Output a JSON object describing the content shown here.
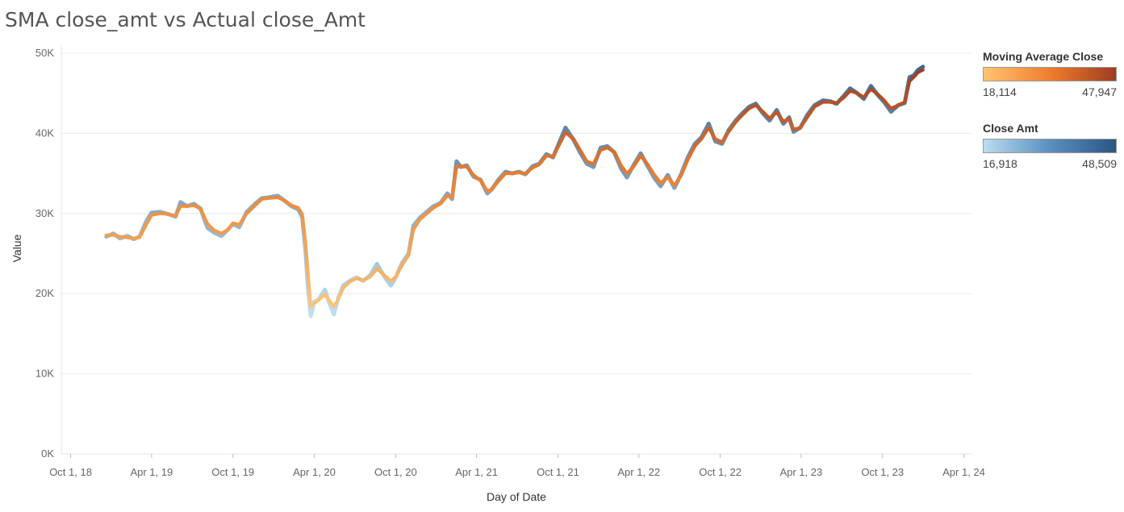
{
  "chart_data": {
    "type": "line",
    "title": "SMA close_amt vs Actual close_Amt",
    "xlabel": "Day of Date",
    "ylabel": "Value",
    "ylim": [
      0,
      50000
    ],
    "xlim": [
      "2018-09-10",
      "2024-04-20"
    ],
    "y_ticks": [
      0,
      10000,
      20000,
      30000,
      40000,
      50000
    ],
    "y_tick_labels": [
      "0K",
      "10K",
      "20K",
      "30K",
      "40K",
      "50K"
    ],
    "x_ticks": [
      "2018-10-01",
      "2019-04-01",
      "2019-10-01",
      "2020-04-01",
      "2020-10-01",
      "2021-04-01",
      "2021-10-01",
      "2022-04-01",
      "2022-10-01",
      "2023-04-01",
      "2023-10-01",
      "2024-04-01"
    ],
    "x_tick_labels": [
      "Oct 1, 18",
      "Apr 1, 19",
      "Oct 1, 19",
      "Apr 1, 20",
      "Oct 1, 20",
      "Apr 1, 21",
      "Oct 1, 21",
      "Apr 1, 22",
      "Oct 1, 22",
      "Apr 1, 23",
      "Oct 1, 23",
      "Apr 1, 24"
    ],
    "grid": true,
    "legend_position": "right",
    "series": [
      {
        "name": "Close Amt",
        "color_range": [
          "#b9dcef",
          "#2a5783"
        ],
        "value_range": [
          16918,
          48509
        ],
        "points": [
          [
            "2018-12-20",
            27100
          ],
          [
            "2019-01-05",
            27500
          ],
          [
            "2019-01-20",
            26900
          ],
          [
            "2019-02-05",
            27200
          ],
          [
            "2019-02-20",
            26800
          ],
          [
            "2019-03-05",
            27100
          ],
          [
            "2019-03-20",
            29000
          ],
          [
            "2019-04-01",
            30100
          ],
          [
            "2019-04-20",
            30200
          ],
          [
            "2019-05-10",
            29900
          ],
          [
            "2019-05-25",
            29600
          ],
          [
            "2019-06-05",
            31400
          ],
          [
            "2019-06-20",
            30900
          ],
          [
            "2019-07-05",
            31200
          ],
          [
            "2019-07-20",
            30600
          ],
          [
            "2019-08-05",
            28200
          ],
          [
            "2019-08-20",
            27600
          ],
          [
            "2019-09-05",
            27200
          ],
          [
            "2019-09-20",
            28000
          ],
          [
            "2019-10-01",
            28700
          ],
          [
            "2019-10-15",
            28300
          ],
          [
            "2019-11-01",
            30200
          ],
          [
            "2019-11-20",
            31200
          ],
          [
            "2019-12-05",
            31900
          ],
          [
            "2019-12-20",
            32000
          ],
          [
            "2020-01-10",
            32200
          ],
          [
            "2020-01-25",
            31600
          ],
          [
            "2020-02-10",
            30900
          ],
          [
            "2020-02-25",
            30500
          ],
          [
            "2020-03-05",
            29500
          ],
          [
            "2020-03-12",
            25500
          ],
          [
            "2020-03-18",
            20500
          ],
          [
            "2020-03-24",
            17200
          ],
          [
            "2020-04-01",
            19000
          ],
          [
            "2020-04-10",
            19200
          ],
          [
            "2020-04-25",
            20500
          ],
          [
            "2020-05-05",
            18800
          ],
          [
            "2020-05-15",
            17400
          ],
          [
            "2020-05-25",
            19500
          ],
          [
            "2020-06-05",
            21000
          ],
          [
            "2020-06-20",
            21600
          ],
          [
            "2020-07-05",
            22000
          ],
          [
            "2020-07-20",
            21600
          ],
          [
            "2020-08-05",
            22300
          ],
          [
            "2020-08-20",
            23700
          ],
          [
            "2020-09-05",
            22200
          ],
          [
            "2020-09-20",
            21000
          ],
          [
            "2020-10-01",
            22000
          ],
          [
            "2020-10-15",
            23800
          ],
          [
            "2020-10-30",
            25000
          ],
          [
            "2020-11-10",
            28500
          ],
          [
            "2020-11-25",
            29500
          ],
          [
            "2020-12-10",
            30200
          ],
          [
            "2020-12-25",
            30900
          ],
          [
            "2021-01-10",
            31300
          ],
          [
            "2021-01-25",
            32500
          ],
          [
            "2021-02-05",
            31800
          ],
          [
            "2021-02-15",
            36500
          ],
          [
            "2021-02-25",
            35800
          ],
          [
            "2021-03-10",
            36000
          ],
          [
            "2021-03-25",
            34600
          ],
          [
            "2021-04-10",
            34200
          ],
          [
            "2021-04-25",
            32500
          ],
          [
            "2021-05-05",
            33000
          ],
          [
            "2021-05-20",
            34200
          ],
          [
            "2021-06-05",
            35200
          ],
          [
            "2021-06-20",
            35000
          ],
          [
            "2021-07-05",
            35200
          ],
          [
            "2021-07-20",
            34900
          ],
          [
            "2021-08-05",
            35900
          ],
          [
            "2021-08-20",
            36200
          ],
          [
            "2021-09-05",
            37400
          ],
          [
            "2021-09-20",
            37000
          ],
          [
            "2021-10-05",
            39000
          ],
          [
            "2021-10-18",
            40700
          ],
          [
            "2021-11-05",
            39200
          ],
          [
            "2021-11-20",
            37600
          ],
          [
            "2021-12-05",
            36200
          ],
          [
            "2021-12-20",
            35800
          ],
          [
            "2022-01-05",
            38200
          ],
          [
            "2022-01-20",
            38400
          ],
          [
            "2022-02-05",
            37600
          ],
          [
            "2022-02-20",
            35600
          ],
          [
            "2022-03-05",
            34500
          ],
          [
            "2022-03-20",
            36000
          ],
          [
            "2022-04-05",
            37500
          ],
          [
            "2022-04-20",
            36000
          ],
          [
            "2022-05-05",
            34500
          ],
          [
            "2022-05-20",
            33400
          ],
          [
            "2022-06-05",
            34800
          ],
          [
            "2022-06-20",
            33200
          ],
          [
            "2022-07-05",
            34900
          ],
          [
            "2022-07-20",
            37000
          ],
          [
            "2022-08-05",
            38700
          ],
          [
            "2022-08-20",
            39500
          ],
          [
            "2022-09-05",
            41200
          ],
          [
            "2022-09-20",
            39000
          ],
          [
            "2022-10-05",
            38700
          ],
          [
            "2022-10-20",
            40400
          ],
          [
            "2022-11-05",
            41600
          ],
          [
            "2022-11-20",
            42500
          ],
          [
            "2022-12-05",
            43300
          ],
          [
            "2022-12-20",
            43700
          ],
          [
            "2023-01-05",
            42500
          ],
          [
            "2023-01-20",
            41600
          ],
          [
            "2023-02-05",
            42900
          ],
          [
            "2023-02-20",
            41200
          ],
          [
            "2023-03-05",
            42000
          ],
          [
            "2023-03-15",
            40200
          ],
          [
            "2023-03-30",
            40700
          ],
          [
            "2023-04-15",
            42300
          ],
          [
            "2023-05-01",
            43500
          ],
          [
            "2023-05-20",
            44100
          ],
          [
            "2023-06-05",
            44000
          ],
          [
            "2023-06-20",
            43700
          ],
          [
            "2023-07-05",
            44600
          ],
          [
            "2023-07-20",
            45600
          ],
          [
            "2023-08-05",
            45000
          ],
          [
            "2023-08-20",
            44300
          ],
          [
            "2023-09-05",
            45900
          ],
          [
            "2023-09-20",
            44800
          ],
          [
            "2023-10-05",
            43900
          ],
          [
            "2023-10-20",
            42700
          ],
          [
            "2023-11-05",
            43500
          ],
          [
            "2023-11-20",
            43800
          ],
          [
            "2023-12-01",
            47000
          ],
          [
            "2023-12-10",
            47200
          ],
          [
            "2023-12-20",
            47900
          ],
          [
            "2023-12-31",
            48300
          ]
        ]
      },
      {
        "name": "Moving Average Close",
        "color_range": [
          "#ffc472",
          "#9e3d22"
        ],
        "value_range": [
          18114,
          47947
        ],
        "points": [
          [
            "2018-12-20",
            27300
          ],
          [
            "2019-01-05",
            27300
          ],
          [
            "2019-01-20",
            27100
          ],
          [
            "2019-02-05",
            27000
          ],
          [
            "2019-02-20",
            26900
          ],
          [
            "2019-03-05",
            27000
          ],
          [
            "2019-03-20",
            28600
          ],
          [
            "2019-04-01",
            29800
          ],
          [
            "2019-04-20",
            30000
          ],
          [
            "2019-05-10",
            29900
          ],
          [
            "2019-05-25",
            29700
          ],
          [
            "2019-06-05",
            30900
          ],
          [
            "2019-06-20",
            30900
          ],
          [
            "2019-07-05",
            31000
          ],
          [
            "2019-07-20",
            30600
          ],
          [
            "2019-08-05",
            28700
          ],
          [
            "2019-08-20",
            27900
          ],
          [
            "2019-09-05",
            27500
          ],
          [
            "2019-09-20",
            28000
          ],
          [
            "2019-10-01",
            28800
          ],
          [
            "2019-10-15",
            28600
          ],
          [
            "2019-11-01",
            30000
          ],
          [
            "2019-11-20",
            31000
          ],
          [
            "2019-12-05",
            31800
          ],
          [
            "2019-12-20",
            31900
          ],
          [
            "2020-01-10",
            32000
          ],
          [
            "2020-01-25",
            31600
          ],
          [
            "2020-02-10",
            31000
          ],
          [
            "2020-02-25",
            30700
          ],
          [
            "2020-03-05",
            29900
          ],
          [
            "2020-03-12",
            26500
          ],
          [
            "2020-03-18",
            22500
          ],
          [
            "2020-03-24",
            18400
          ],
          [
            "2020-04-01",
            18800
          ],
          [
            "2020-04-10",
            19200
          ],
          [
            "2020-04-25",
            19900
          ],
          [
            "2020-05-05",
            19100
          ],
          [
            "2020-05-15",
            18400
          ],
          [
            "2020-05-25",
            19300
          ],
          [
            "2020-06-05",
            20700
          ],
          [
            "2020-06-20",
            21500
          ],
          [
            "2020-07-05",
            21900
          ],
          [
            "2020-07-20",
            21700
          ],
          [
            "2020-08-05",
            22100
          ],
          [
            "2020-08-20",
            23100
          ],
          [
            "2020-09-05",
            22300
          ],
          [
            "2020-09-20",
            21600
          ],
          [
            "2020-10-01",
            22100
          ],
          [
            "2020-10-15",
            23500
          ],
          [
            "2020-10-30",
            24800
          ],
          [
            "2020-11-10",
            28000
          ],
          [
            "2020-11-25",
            29300
          ],
          [
            "2020-12-10",
            30000
          ],
          [
            "2020-12-25",
            30700
          ],
          [
            "2021-01-10",
            31200
          ],
          [
            "2021-01-25",
            32200
          ],
          [
            "2021-02-05",
            32000
          ],
          [
            "2021-02-15",
            35800
          ],
          [
            "2021-02-25",
            35900
          ],
          [
            "2021-03-10",
            35800
          ],
          [
            "2021-03-25",
            34800
          ],
          [
            "2021-04-10",
            34100
          ],
          [
            "2021-04-25",
            32800
          ],
          [
            "2021-05-05",
            33000
          ],
          [
            "2021-05-20",
            34000
          ],
          [
            "2021-06-05",
            35000
          ],
          [
            "2021-06-20",
            35000
          ],
          [
            "2021-07-05",
            35100
          ],
          [
            "2021-07-20",
            35000
          ],
          [
            "2021-08-05",
            35700
          ],
          [
            "2021-08-20",
            36100
          ],
          [
            "2021-09-05",
            37200
          ],
          [
            "2021-09-20",
            37100
          ],
          [
            "2021-10-05",
            38700
          ],
          [
            "2021-10-18",
            40100
          ],
          [
            "2021-11-05",
            39300
          ],
          [
            "2021-11-20",
            37900
          ],
          [
            "2021-12-05",
            36500
          ],
          [
            "2021-12-20",
            36200
          ],
          [
            "2022-01-05",
            37900
          ],
          [
            "2022-01-20",
            38200
          ],
          [
            "2022-02-05",
            37700
          ],
          [
            "2022-02-20",
            36000
          ],
          [
            "2022-03-05",
            35000
          ],
          [
            "2022-03-20",
            35800
          ],
          [
            "2022-04-05",
            37200
          ],
          [
            "2022-04-20",
            36200
          ],
          [
            "2022-05-05",
            34900
          ],
          [
            "2022-05-20",
            33800
          ],
          [
            "2022-06-05",
            34500
          ],
          [
            "2022-06-20",
            33500
          ],
          [
            "2022-07-05",
            34700
          ],
          [
            "2022-07-20",
            36700
          ],
          [
            "2022-08-05",
            38400
          ],
          [
            "2022-08-20",
            39300
          ],
          [
            "2022-09-05",
            40700
          ],
          [
            "2022-09-20",
            39300
          ],
          [
            "2022-10-05",
            38900
          ],
          [
            "2022-10-20",
            40200
          ],
          [
            "2022-11-05",
            41400
          ],
          [
            "2022-11-20",
            42300
          ],
          [
            "2022-12-05",
            43100
          ],
          [
            "2022-12-20",
            43500
          ],
          [
            "2023-01-05",
            42700
          ],
          [
            "2023-01-20",
            41900
          ],
          [
            "2023-02-05",
            42600
          ],
          [
            "2023-02-20",
            41500
          ],
          [
            "2023-03-05",
            41800
          ],
          [
            "2023-03-15",
            40500
          ],
          [
            "2023-03-30",
            40700
          ],
          [
            "2023-04-15",
            42000
          ],
          [
            "2023-05-01",
            43300
          ],
          [
            "2023-05-20",
            43900
          ],
          [
            "2023-06-05",
            43900
          ],
          [
            "2023-06-20",
            43800
          ],
          [
            "2023-07-05",
            44400
          ],
          [
            "2023-07-20",
            45300
          ],
          [
            "2023-08-05",
            45000
          ],
          [
            "2023-08-20",
            44500
          ],
          [
            "2023-09-05",
            45500
          ],
          [
            "2023-09-20",
            44900
          ],
          [
            "2023-10-05",
            44100
          ],
          [
            "2023-10-20",
            43100
          ],
          [
            "2023-11-05",
            43500
          ],
          [
            "2023-11-20",
            43900
          ],
          [
            "2023-12-01",
            46500
          ],
          [
            "2023-12-10",
            47000
          ],
          [
            "2023-12-20",
            47600
          ],
          [
            "2023-12-31",
            47900
          ]
        ]
      }
    ]
  },
  "legend": {
    "moving_average": {
      "title": "Moving Average Close",
      "min": "18,114",
      "max": "47,947"
    },
    "close_amt": {
      "title": "Close Amt",
      "min": "16,918",
      "max": "48,509"
    }
  }
}
